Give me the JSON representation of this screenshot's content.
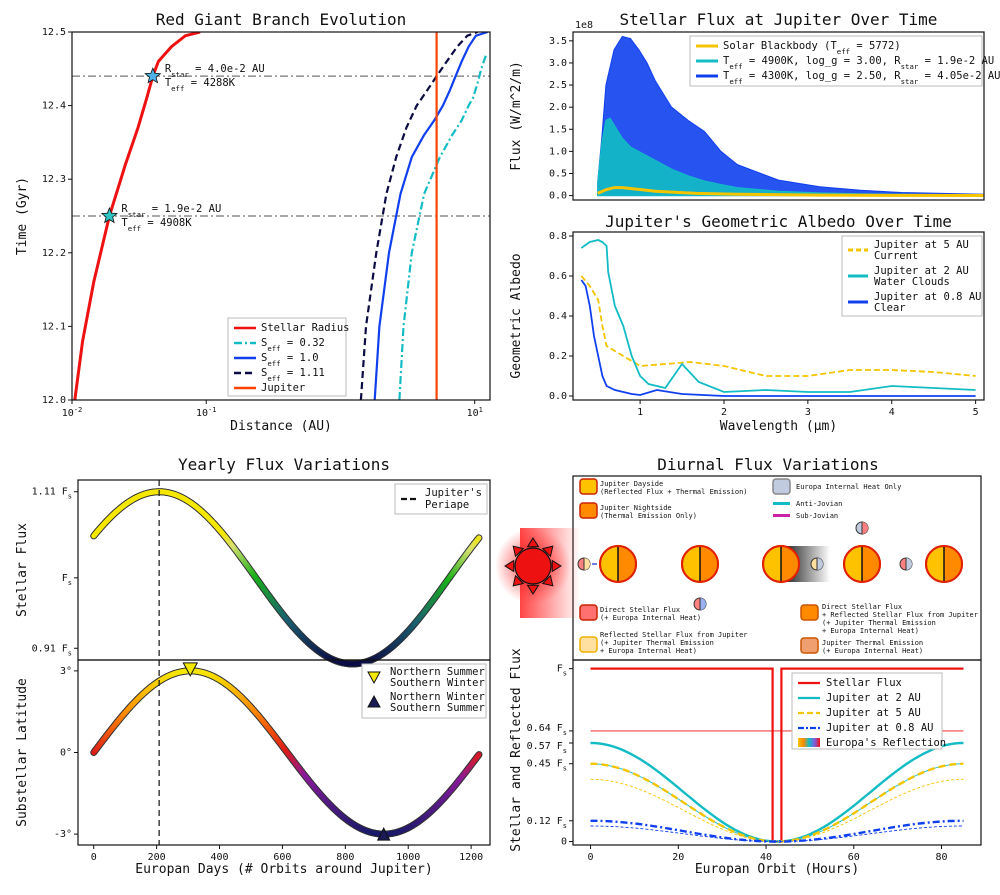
{
  "colors": {
    "red": "#ee1111",
    "cyan": "#13bcc4",
    "blue": "#1040ee",
    "navy": "#0c0c44",
    "gold": "#f5c400",
    "orange": "#ff4400"
  },
  "chart_data": [
    {
      "id": "rgb",
      "type": "line",
      "title": "Red Giant Branch Evolution",
      "xlabel": "Distance (AU)",
      "ylabel": "Time (Gyr)",
      "xscale": "log",
      "xlim": [
        0.01,
        13
      ],
      "ylim": [
        12.0,
        12.5
      ],
      "xticks": [
        "10",
        "10",
        "10"
      ],
      "xtick_exps": [
        "-2",
        "-1",
        "1"
      ],
      "xtick_vals": [
        0.01,
        0.1,
        10
      ],
      "yticks": [
        "12.0",
        "12.1",
        "12.2",
        "12.3",
        "12.4",
        "12.5"
      ],
      "legend": [
        "Stellar Radius",
        "S",
        "S",
        "S",
        "Jupiter"
      ],
      "legend_subs": [
        "",
        "eff",
        "eff",
        "eff",
        ""
      ],
      "legend_vals": [
        "",
        "= 0.32",
        "= 1.0",
        "= 1.11",
        ""
      ],
      "series": [
        {
          "name": "Stellar Radius",
          "style": "solid",
          "color": "red",
          "x": [
            0.0105,
            0.012,
            0.0145,
            0.019,
            0.025,
            0.031,
            0.036,
            0.04,
            0.044,
            0.055,
            0.07,
            0.09
          ],
          "y": [
            12.0,
            12.08,
            12.16,
            12.25,
            12.32,
            12.37,
            12.41,
            12.44,
            12.46,
            12.48,
            12.495,
            12.5
          ]
        },
        {
          "name": "S_eff = 0.32",
          "style": "dashdot",
          "color": "cyan",
          "x": [
            2.75,
            2.95,
            3.4,
            4.2,
            5.5,
            6.8,
            8.0,
            9.0,
            9.7,
            10.5,
            11.2,
            12.2
          ],
          "y": [
            12.0,
            12.1,
            12.2,
            12.28,
            12.33,
            12.36,
            12.38,
            12.4,
            12.41,
            12.43,
            12.45,
            12.47
          ]
        },
        {
          "name": "S_eff = 1.0",
          "style": "solid",
          "color": "blue",
          "x": [
            1.8,
            1.95,
            2.3,
            2.8,
            3.4,
            4.2,
            5.0,
            5.8,
            6.5,
            7.2,
            8.0,
            9.0,
            10.2,
            12.5
          ],
          "y": [
            12.0,
            12.1,
            12.2,
            12.28,
            12.33,
            12.36,
            12.38,
            12.4,
            12.42,
            12.44,
            12.46,
            12.48,
            12.495,
            12.5
          ]
        },
        {
          "name": "S_eff = 1.11",
          "style": "dashed",
          "color": "navy",
          "x": [
            1.42,
            1.55,
            1.85,
            2.2,
            2.6,
            3.1,
            3.7,
            4.4,
            5.2,
            6.2,
            7.4,
            8.8,
            10.5
          ],
          "y": [
            12.0,
            12.1,
            12.2,
            12.28,
            12.33,
            12.37,
            12.4,
            12.42,
            12.44,
            12.46,
            12.48,
            12.495,
            12.5
          ]
        },
        {
          "name": "Jupiter",
          "style": "solid",
          "color": "orange",
          "x": [
            5.2,
            5.2
          ],
          "y": [
            12.0,
            12.5
          ]
        }
      ],
      "hlines": [
        12.44,
        12.25
      ],
      "markers": [
        {
          "x": 0.04,
          "y": 12.44,
          "color": "#4db3e6"
        },
        {
          "x": 0.019,
          "y": 12.25,
          "color": "#2fc4c4"
        }
      ],
      "annotations": [
        {
          "r_prefix": "R",
          "r_sub": "star",
          "r_val": "= 4.0e-2 AU",
          "t_prefix": "T",
          "t_sub": "eff",
          "t_val": "= 4288K"
        },
        {
          "r_prefix": "R",
          "r_sub": "star",
          "r_val": "= 1.9e-2 AU",
          "t_prefix": "T",
          "t_sub": "eff",
          "t_val": "= 4908K"
        }
      ]
    },
    {
      "id": "flux",
      "type": "area",
      "title": "Stellar Flux at Jupiter Over Time",
      "xlabel": "",
      "ylabel": "Flux (W/m^2/m)",
      "multiplier": "1e8",
      "xlim": [
        0,
        5
      ],
      "ylim": [
        -0.1,
        3.7
      ],
      "yticks": [
        "0.0",
        "0.5",
        "1.0",
        "1.5",
        "2.0",
        "2.5",
        "3.0",
        "3.5"
      ],
      "legend": [
        {
          "main": "Solar Blackbody (T",
          "sub": "eff",
          "rest": " = 5772)",
          "color": "gold"
        },
        {
          "main": "T",
          "sub": "eff",
          "rest": " = 4900K, log_g = 3.00, R",
          "sub2": "star",
          "rest2": " = 1.9e-2 AU",
          "color": "cyan"
        },
        {
          "main": "T",
          "sub": "eff",
          "rest": " = 4300K, log_g = 2.50, R",
          "sub2": "star",
          "rest2": " = 4.05e-2 AU",
          "color": "blue"
        }
      ],
      "series": [
        {
          "name": "4300K",
          "color": "blue",
          "x": [
            0.3,
            0.35,
            0.4,
            0.5,
            0.6,
            0.7,
            0.8,
            0.9,
            1.0,
            1.2,
            1.4,
            1.6,
            1.8,
            2.0,
            2.5,
            3.0,
            3.5,
            4.0,
            4.5,
            5.0
          ],
          "y": [
            0.3,
            1.3,
            2.5,
            3.3,
            3.6,
            3.55,
            3.3,
            3.0,
            2.6,
            2.0,
            1.7,
            1.45,
            1.0,
            0.7,
            0.35,
            0.2,
            0.12,
            0.07,
            0.05,
            0.03
          ]
        },
        {
          "name": "4900K",
          "color": "cyan",
          "x": [
            0.3,
            0.35,
            0.4,
            0.45,
            0.5,
            0.6,
            0.7,
            0.8,
            0.9,
            1.0,
            1.2,
            1.4,
            1.6,
            1.8,
            2.0,
            2.5,
            3.0,
            3.5,
            4.0,
            5.0
          ],
          "y": [
            0.3,
            1.2,
            1.7,
            1.75,
            1.6,
            1.3,
            1.1,
            1.0,
            0.9,
            0.8,
            0.6,
            0.45,
            0.33,
            0.25,
            0.18,
            0.1,
            0.06,
            0.04,
            0.03,
            0.02
          ]
        },
        {
          "name": "Solar",
          "color": "gold",
          "x": [
            0.3,
            0.4,
            0.5,
            0.6,
            0.8,
            1.0,
            1.5,
            2.0,
            3.0,
            4.0,
            5.0
          ],
          "y": [
            0.05,
            0.13,
            0.18,
            0.18,
            0.14,
            0.1,
            0.05,
            0.03,
            0.01,
            0.005,
            0.002
          ]
        }
      ]
    },
    {
      "id": "albedo",
      "type": "line",
      "title": "Jupiter's Geometric Albedo Over Time",
      "xlabel": "Wavelength (μm)",
      "ylabel": "Geometric Albedo",
      "xlim": [
        0.2,
        5.1
      ],
      "ylim": [
        -0.02,
        0.82
      ],
      "xticks": [
        "1",
        "2",
        "3",
        "4",
        "5"
      ],
      "yticks": [
        "0.0",
        "0.2",
        "0.4",
        "0.6",
        "0.8"
      ],
      "legend": [
        {
          "line1": "Jupiter at 5 AU",
          "line2": "Current",
          "color": "gold",
          "style": "dashed"
        },
        {
          "line1": "Jupiter at 2 AU",
          "line2": "Water Clouds",
          "color": "cyan",
          "style": "solid"
        },
        {
          "line1": "Jupiter at 0.8 AU",
          "line2": "Clear",
          "color": "blue",
          "style": "solid"
        }
      ],
      "series": [
        {
          "name": "Jupiter at 2 AU",
          "color": "cyan",
          "x": [
            0.3,
            0.4,
            0.5,
            0.55,
            0.6,
            0.62,
            0.7,
            0.8,
            0.9,
            1.0,
            1.1,
            1.3,
            1.5,
            1.7,
            2.0,
            2.5,
            3.0,
            3.5,
            4.0,
            4.5,
            5.0
          ],
          "y": [
            0.74,
            0.77,
            0.78,
            0.77,
            0.75,
            0.62,
            0.45,
            0.35,
            0.2,
            0.1,
            0.06,
            0.04,
            0.16,
            0.07,
            0.02,
            0.03,
            0.02,
            0.02,
            0.05,
            0.04,
            0.03
          ]
        },
        {
          "name": "Jupiter at 5 AU",
          "color": "gold",
          "x": [
            0.3,
            0.4,
            0.5,
            0.55,
            0.6,
            0.8,
            1.0,
            1.3,
            1.6,
            2.0,
            2.5,
            3.0,
            3.5,
            4.0,
            4.5,
            5.0
          ],
          "y": [
            0.6,
            0.55,
            0.48,
            0.35,
            0.25,
            0.2,
            0.15,
            0.16,
            0.17,
            0.15,
            0.1,
            0.1,
            0.13,
            0.13,
            0.12,
            0.1
          ]
        },
        {
          "name": "Jupiter at 0.8 AU",
          "color": "blue",
          "x": [
            0.3,
            0.35,
            0.4,
            0.45,
            0.5,
            0.55,
            0.6,
            0.7,
            0.8,
            0.9,
            1.0,
            1.2,
            1.5,
            2.0,
            3.0,
            5.0
          ],
          "y": [
            0.58,
            0.55,
            0.45,
            0.3,
            0.2,
            0.1,
            0.05,
            0.03,
            0.02,
            0.01,
            0.005,
            0.03,
            0.01,
            0.0,
            0.0,
            0.0
          ]
        }
      ]
    },
    {
      "id": "yearly_flux",
      "type": "line",
      "title": "Yearly Flux Variations",
      "ylabel": "Stellar Flux",
      "xlim": [
        -50,
        1260
      ],
      "yticks": [
        "1.11",
        "0.91"
      ],
      "ytick_vals": [
        1.11,
        0.91
      ],
      "ytick_mid_val": 1.0,
      "ytick_suffix": "F",
      "ytick_sub": "s",
      "ytick_mid": "F",
      "ylim": [
        0.895,
        1.125
      ],
      "legend": [
        "Jupiter's",
        "Periape"
      ],
      "periapse_x": 208,
      "series": [
        {
          "name": "Stellar Flux",
          "period": 1230,
          "center": 1.0,
          "amp": 0.11,
          "peak_x": 208
        }
      ]
    },
    {
      "id": "substellar",
      "type": "line",
      "xlabel": "Europan Days (# Orbits around Jupiter)",
      "ylabel": "Substellar Latitude",
      "xlim": [
        -50,
        1260
      ],
      "ylim": [
        -3.4,
        3.4
      ],
      "xticks": [
        "0",
        "200",
        "400",
        "600",
        "800",
        "1000",
        "1200"
      ],
      "xtick_vals": [
        0,
        200,
        400,
        600,
        800,
        1000,
        1200
      ],
      "yticks": [
        "3°",
        "0°",
        "-3°"
      ],
      "ytick_vals": [
        3,
        0,
        -3
      ],
      "legend": [
        {
          "line1": "Northern Summer",
          "line2": "Southern Winter",
          "color": "#f5e800"
        },
        {
          "line1": "Northern Winter",
          "line2": "Southern Summer",
          "color": "#0c0c44"
        }
      ],
      "series": [
        {
          "name": "Substellar Latitude",
          "amp": 3.0,
          "period": 1230
        }
      ],
      "markers": [
        {
          "x": 307,
          "y": 3.0
        },
        {
          "x": 922,
          "y": -3.0
        }
      ]
    },
    {
      "id": "diurnal",
      "type": "line",
      "title": "Diurnal Flux Variations",
      "xlabel": "Europan Orbit (Hours)",
      "ylabel": "Stellar and Reflected Flux",
      "xlim": [
        -4,
        89
      ],
      "ylim": [
        -0.02,
        1.05
      ],
      "xticks": [
        "0",
        "20",
        "40",
        "60",
        "80"
      ],
      "xtick_vals": [
        0,
        20,
        40,
        60,
        80
      ],
      "yticks": [
        "F",
        "0.64 F",
        "0.57 F",
        "0.45 F",
        "0.12 F",
        "0"
      ],
      "ytick_vals": [
        1.0,
        0.64,
        0.57,
        0.45,
        0.12,
        0.0
      ],
      "legend": [
        "Stellar Flux",
        "Jupiter at 2 AU",
        "Jupiter at 5 AU",
        "Jupiter at 0.8 AU",
        "Europa's Reflection"
      ],
      "eclipse": [
        41.5,
        43.5
      ],
      "period": 85,
      "series": [
        {
          "name": "Stellar Flux",
          "color": "red",
          "const": 1.0
        },
        {
          "name": "Jupiter at 2 AU",
          "color": "cyan",
          "amp": 0.57,
          "thin_amp": 0.45
        },
        {
          "name": "Jupiter at 5 AU",
          "color": "gold",
          "amp": 0.45,
          "thin_amp": 0.36
        },
        {
          "name": "Jupiter at 0.8 AU",
          "color": "blue",
          "amp": 0.12,
          "thin_amp": 0.09
        }
      ],
      "red_thin_level": 0.64
    }
  ],
  "diagram": {
    "legend": [
      {
        "label1": "Jupiter Dayside",
        "label2": "(Reflected Flux + Thermal Emission)"
      },
      {
        "label1": "Jupiter Nightside",
        "label2": "(Thermal Emission Only)"
      },
      {
        "label1": "Europa Internal Heat Only",
        "label2": ""
      },
      {
        "label1": "Anti-Jovian",
        "label2": ""
      },
      {
        "label1": "Sub-Jovian",
        "label2": ""
      }
    ],
    "bottom_legend": [
      {
        "label1": "Direct Stellar Flux",
        "label2": "(+ Europa Internal Heat)"
      },
      {
        "label1": "Reflected Stellar Flux from Jupiter",
        "label2": "(+ Jupiter Thermal Emission",
        "label3": " + Europa Internal Heat)"
      },
      {
        "label1": "Direct Stellar Flux",
        "label2": "+ Reflected Stellar Flux from Jupiter",
        "label3": "(+ Jupiter Thermal Emission",
        "label4": " + Europa Internal Heat)"
      },
      {
        "label1": "Jupiter Thermal Emission",
        "label2": "(+ Europa Internal Heat)"
      }
    ]
  }
}
